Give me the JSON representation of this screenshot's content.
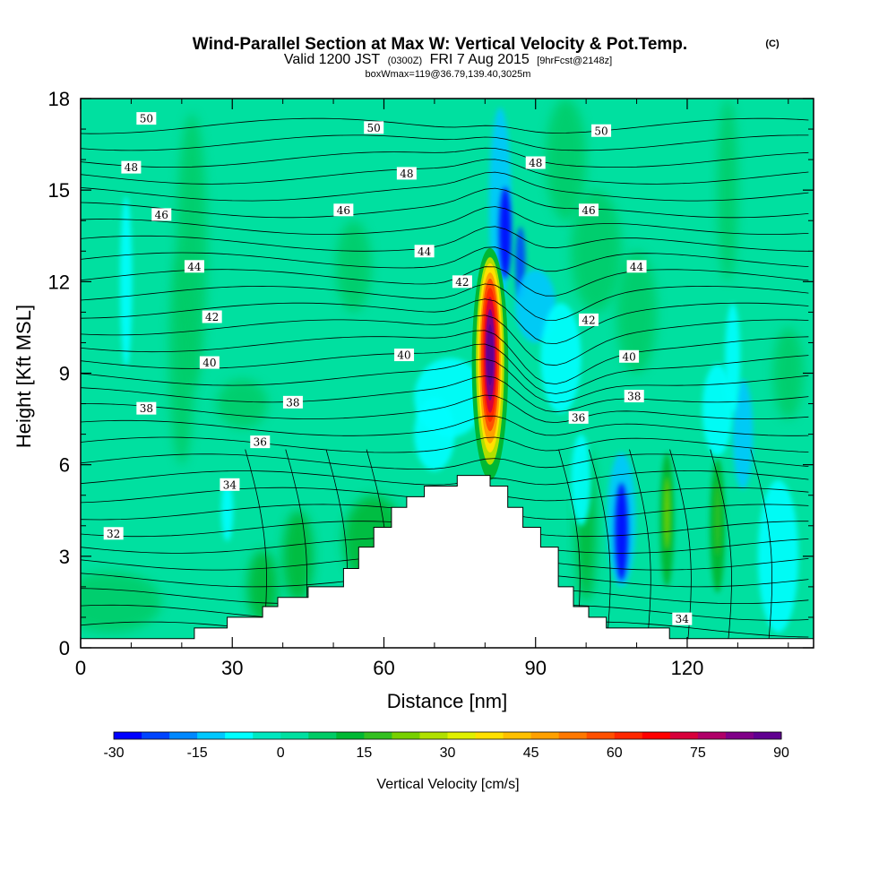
{
  "title": {
    "main": "Wind-Parallel Section at Max W: Vertical Velocity & Pot.Temp.",
    "copyright": "(C)",
    "valid_prefix": "Valid 1200 JST",
    "valid_utc": "(0300Z)",
    "valid_date": "FRI 7 Aug 2015",
    "forecast": "[9hrFcst@2148z]",
    "subtitle": "boxWmax=119@36.79,139.40,3025m"
  },
  "colors": {
    "background_field": "#00e0a0",
    "terrain": "#ffffff",
    "contour": "#000000"
  },
  "chart_data": {
    "type": "heatmap",
    "xlabel": "Distance [nm]",
    "ylabel": "Height [Kft MSL]",
    "xlim": [
      0,
      145
    ],
    "ylim": [
      0,
      18
    ],
    "xticks": [
      0,
      30,
      60,
      90,
      120
    ],
    "yticks": [
      0,
      3,
      6,
      9,
      12,
      15,
      18
    ],
    "x_tick_labels": [
      "0",
      "30",
      "60",
      "90",
      "120"
    ],
    "y_tick_labels": [
      "0",
      "3",
      "6",
      "9",
      "12",
      "15",
      "18"
    ],
    "colorbar": {
      "title": "Vertical Velocity [cm/s]",
      "min": -30,
      "max": 90,
      "step": 5,
      "labels": [
        "-30",
        "-15",
        "0",
        "15",
        "30",
        "45",
        "60",
        "75",
        "90"
      ],
      "colors": [
        "#0000ff",
        "#0044ff",
        "#0088ff",
        "#00c8ff",
        "#00ffff",
        "#00e8c0",
        "#00e0a0",
        "#00cc66",
        "#00b833",
        "#33c020",
        "#77d000",
        "#b0e000",
        "#e0f000",
        "#ffe000",
        "#ffc000",
        "#ffa000",
        "#ff7800",
        "#ff5000",
        "#ff2800",
        "#ff0000",
        "#d8003a",
        "#b00068",
        "#800088",
        "#600090"
      ]
    },
    "terrain_height_kft": {
      "x": [
        0,
        22.5,
        22.5,
        29,
        29,
        36,
        36,
        39,
        39,
        45,
        45,
        52,
        52,
        55,
        55,
        58,
        58,
        61.5,
        61.5,
        64.5,
        64.5,
        68,
        68,
        74.5,
        74.5,
        77.5,
        77.5,
        81,
        81,
        84.5,
        84.5,
        87.5,
        87.5,
        91,
        91,
        94.5,
        94.5,
        97.5,
        97.5,
        100.5,
        100.5,
        104,
        104,
        107,
        107,
        116.5,
        116.5,
        129,
        129,
        145
      ],
      "y": [
        0.3,
        0.3,
        0.65,
        0.65,
        1.0,
        1.0,
        1.35,
        1.35,
        1.65,
        1.65,
        2.0,
        2.0,
        2.6,
        2.6,
        3.3,
        3.3,
        3.95,
        3.95,
        4.6,
        4.6,
        4.95,
        4.95,
        5.3,
        5.3,
        5.65,
        5.65,
        5.65,
        5.65,
        5.3,
        5.3,
        4.6,
        4.6,
        3.95,
        3.95,
        3.3,
        3.3,
        2.0,
        2.0,
        1.35,
        1.35,
        1.0,
        1.0,
        0.65,
        0.65,
        0.65,
        0.65,
        0.3,
        0.3,
        0.3,
        0.3
      ]
    },
    "vertical_velocity_features": [
      {
        "x": 81,
        "y": 9.5,
        "peak": 90,
        "note": "updraft core"
      },
      {
        "x": 84,
        "y": 13.5,
        "peak": -28
      },
      {
        "x": 86.5,
        "y": 12.5,
        "peak": -25
      },
      {
        "x": 107,
        "y": 3.8,
        "peak": -30
      },
      {
        "x": 116,
        "y": 4.5,
        "peak": 20
      },
      {
        "x": 126,
        "y": 4.0,
        "peak": 15
      },
      {
        "x": 131,
        "y": 7.0,
        "peak": -18
      },
      {
        "x": 9,
        "y": 12.0,
        "peak": -7
      },
      {
        "x": 22,
        "y": 11.0,
        "peak": 8
      }
    ],
    "pot_temp_contour_labels": [
      {
        "text": "50",
        "x": 13,
        "y": 17.35
      },
      {
        "text": "50",
        "x": 58,
        "y": 17.05
      },
      {
        "text": "50",
        "x": 103,
        "y": 16.95
      },
      {
        "text": "48",
        "x": 10,
        "y": 15.75
      },
      {
        "text": "48",
        "x": 64.5,
        "y": 15.55
      },
      {
        "text": "48",
        "x": 90,
        "y": 15.9
      },
      {
        "text": "46",
        "x": 16,
        "y": 14.2
      },
      {
        "text": "46",
        "x": 52,
        "y": 14.35
      },
      {
        "text": "46",
        "x": 100.5,
        "y": 14.35
      },
      {
        "text": "44",
        "x": 22.5,
        "y": 12.5
      },
      {
        "text": "44",
        "x": 68,
        "y": 13.0
      },
      {
        "text": "44",
        "x": 110,
        "y": 12.5
      },
      {
        "text": "42",
        "x": 26,
        "y": 10.85
      },
      {
        "text": "42",
        "x": 75.5,
        "y": 12.0
      },
      {
        "text": "42",
        "x": 100.5,
        "y": 10.75
      },
      {
        "text": "40",
        "x": 25.5,
        "y": 9.35
      },
      {
        "text": "40",
        "x": 64,
        "y": 9.6
      },
      {
        "text": "40",
        "x": 108.5,
        "y": 9.55
      },
      {
        "text": "38",
        "x": 13,
        "y": 7.85
      },
      {
        "text": "38",
        "x": 42,
        "y": 8.05
      },
      {
        "text": "38",
        "x": 109.5,
        "y": 8.25
      },
      {
        "text": "36",
        "x": 35.5,
        "y": 6.75
      },
      {
        "text": "36",
        "x": 98.5,
        "y": 7.55
      },
      {
        "text": "34",
        "x": 29.5,
        "y": 5.35
      },
      {
        "text": "34",
        "x": 119,
        "y": 0.95
      },
      {
        "text": "32",
        "x": 6.5,
        "y": 3.75
      }
    ]
  }
}
